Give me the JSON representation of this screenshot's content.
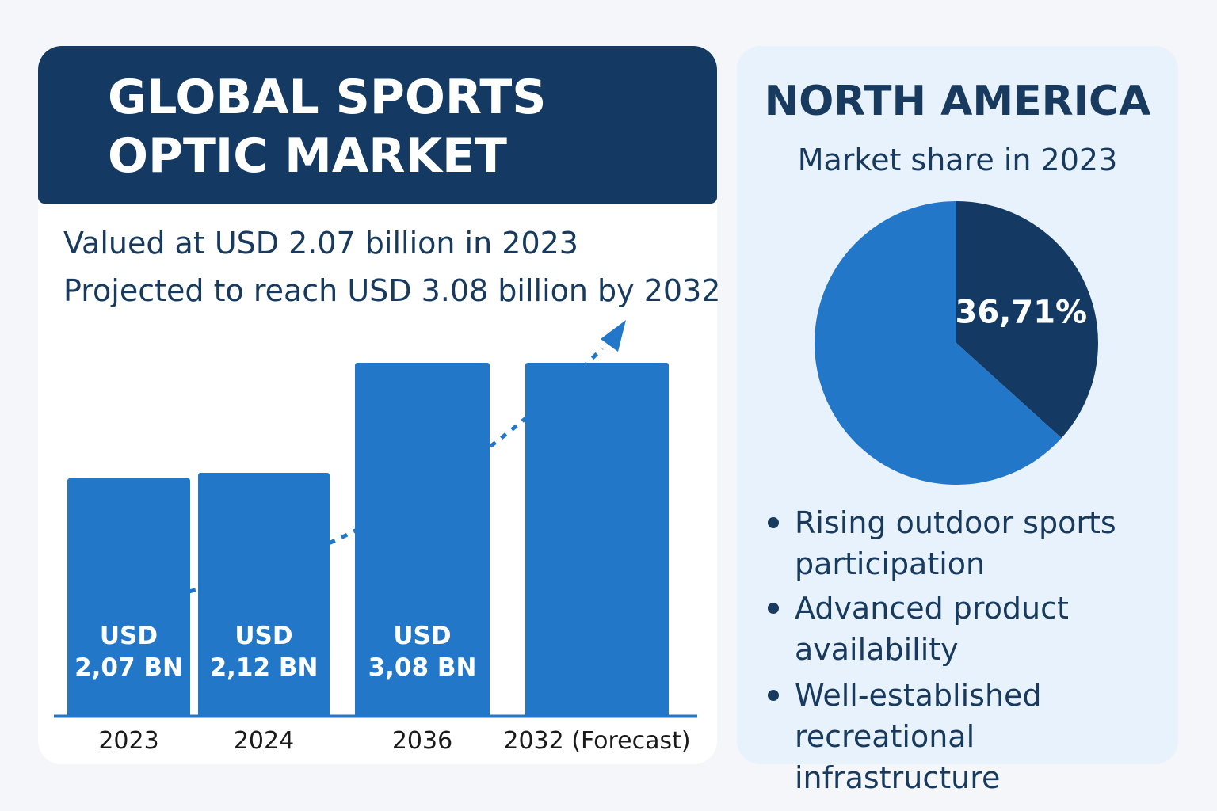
{
  "title_lines": [
    "GLOBAL SPORTS",
    "OPTIC MARKET"
  ],
  "chart_data": [
    {
      "type": "bar",
      "annotations": [
        "Valued at USD 2.07 billion in 2023",
        "Projected to reach USD 3.08 billion by 2032"
      ],
      "categories": [
        "2023",
        "2024",
        "2036",
        "2032 (Forecast)"
      ],
      "values": [
        2.07,
        2.12,
        3.08,
        3.08
      ],
      "value_labels": [
        "USD 2,07 BN",
        "USD 2,12 BN",
        "USD 3,08 BN",
        null
      ],
      "color": "#2277c9"
    },
    {
      "type": "pie",
      "title": "NORTH AMERICA",
      "subtitle": "Market share in 2023",
      "categories": [
        null,
        null
      ],
      "values": [
        36.71,
        63.29
      ],
      "value_labels": [
        "36,71%",
        null
      ],
      "colors": [
        "#143a63",
        "#2277c9"
      ]
    }
  ],
  "bullets": [
    "Rising outdoor sports participation",
    "Advanced product availability",
    "Well-established recreational infrastructure"
  ]
}
